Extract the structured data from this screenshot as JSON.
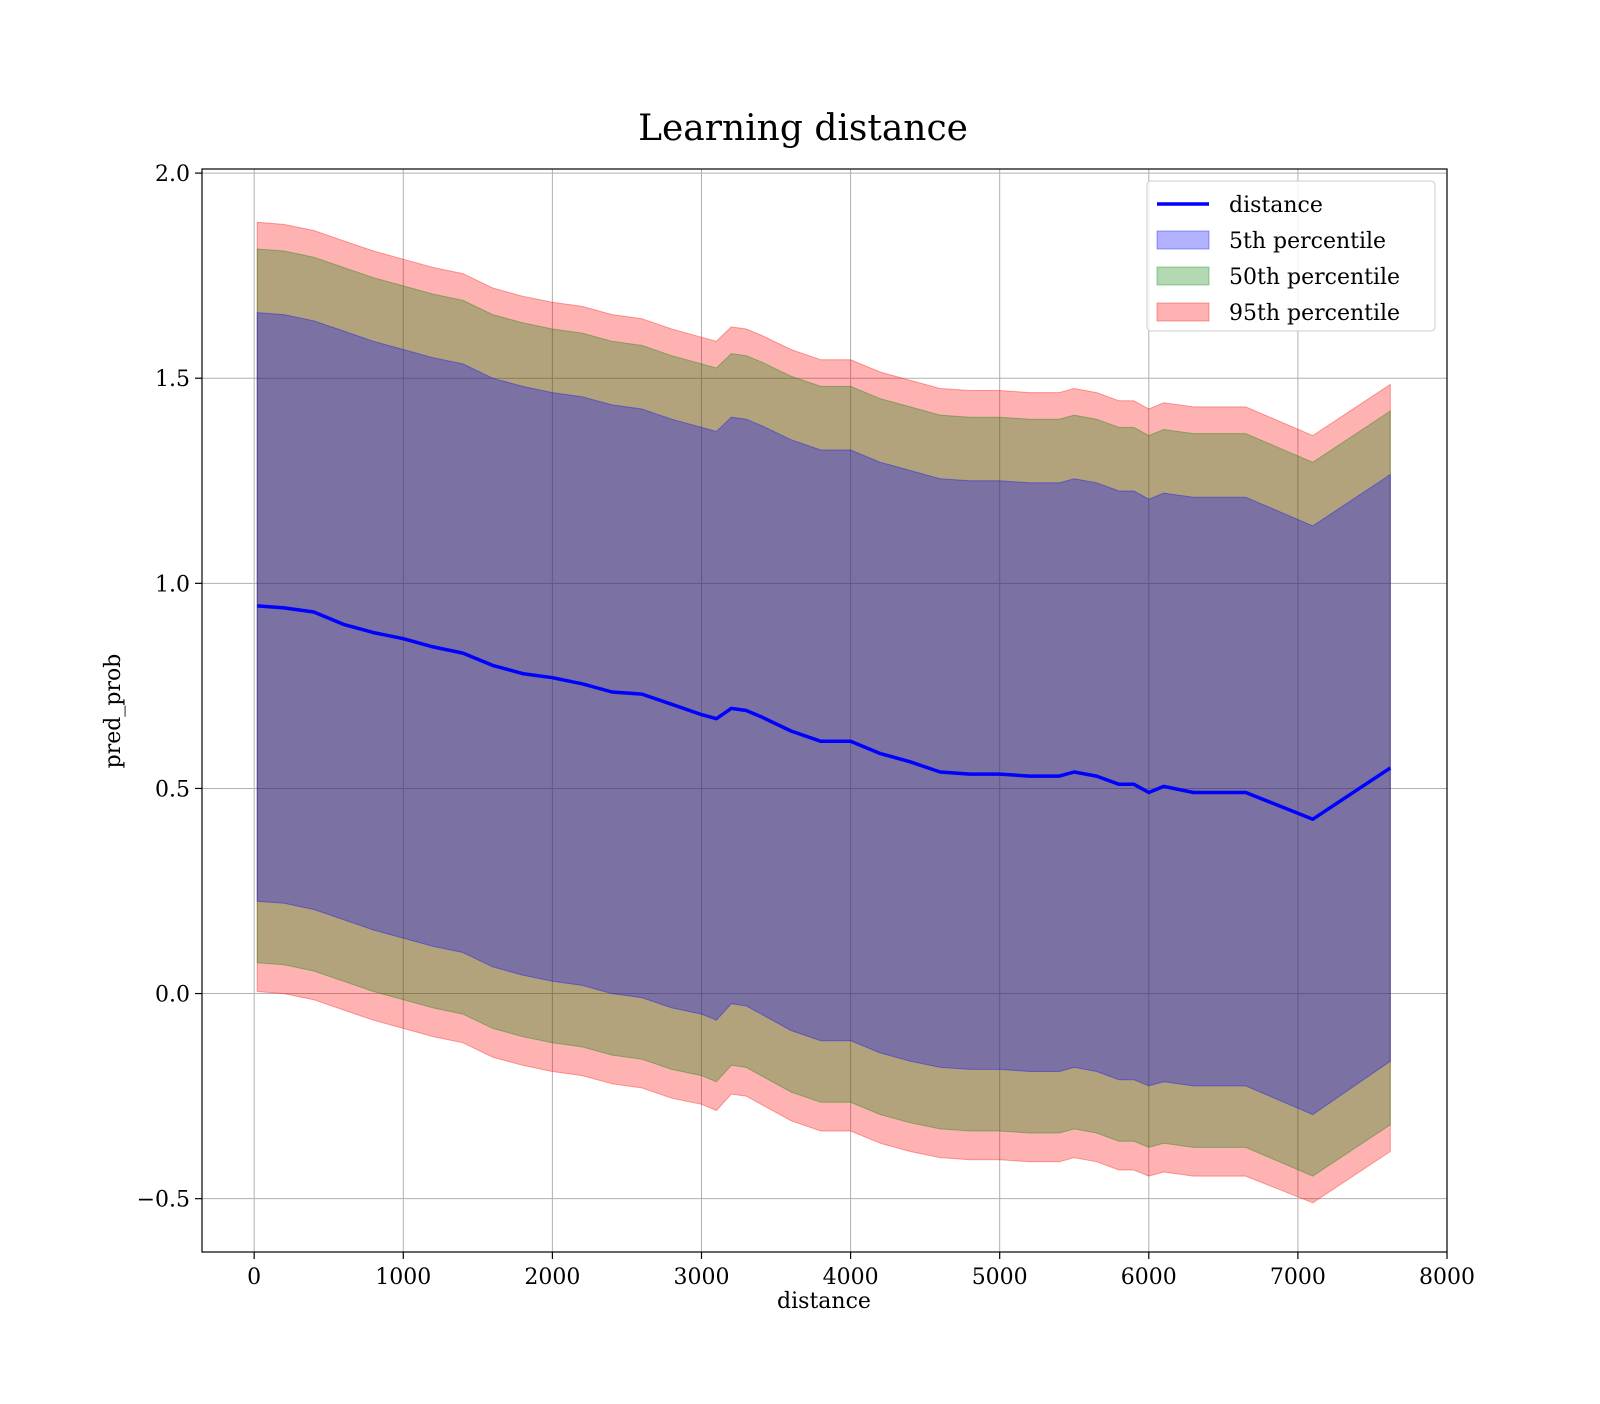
{
  "chart_data": {
    "type": "line",
    "title": "Learning distance",
    "xlabel": "distance",
    "ylabel": "pred_prob",
    "xlim": [
      -350,
      8000
    ],
    "ylim": [
      -0.63,
      2.01
    ],
    "xticks": [
      0,
      1000,
      2000,
      3000,
      4000,
      5000,
      6000,
      7000,
      8000
    ],
    "xtick_labels": [
      "0",
      "1000",
      "2000",
      "3000",
      "4000",
      "5000",
      "6000",
      "7000",
      "8000"
    ],
    "yticks": [
      -0.5,
      0.0,
      0.5,
      1.0,
      1.5,
      2.0
    ],
    "ytick_labels": [
      "−0.5",
      "0.0",
      "0.5",
      "1.0",
      "1.5",
      "2.0"
    ],
    "grid": true,
    "legend_position": "top-right",
    "legend": [
      {
        "label": "distance",
        "kind": "line",
        "color": "#0000ff"
      },
      {
        "label": "5th percentile",
        "kind": "patch",
        "color": "#0000ff"
      },
      {
        "label": "50th percentile",
        "kind": "patch",
        "color": "#008000"
      },
      {
        "label": "95th percentile",
        "kind": "patch",
        "color": "#ff0000"
      }
    ],
    "x": [
      20,
      200,
      400,
      600,
      800,
      1000,
      1200,
      1400,
      1600,
      1800,
      2000,
      2200,
      2400,
      2600,
      2800,
      3000,
      3100,
      3200,
      3300,
      3400,
      3600,
      3800,
      4000,
      4200,
      4400,
      4600,
      4800,
      5000,
      5200,
      5400,
      5500,
      5650,
      5800,
      5900,
      6000,
      6100,
      6300,
      6650,
      7100,
      7620
    ],
    "series": [
      {
        "name": "distance",
        "color": "#0000ff",
        "values": [
          0.945,
          0.94,
          0.93,
          0.9,
          0.88,
          0.865,
          0.845,
          0.83,
          0.8,
          0.78,
          0.77,
          0.755,
          0.735,
          0.73,
          0.705,
          0.68,
          0.67,
          0.695,
          0.69,
          0.675,
          0.64,
          0.615,
          0.615,
          0.585,
          0.565,
          0.54,
          0.535,
          0.535,
          0.53,
          0.53,
          0.54,
          0.53,
          0.51,
          0.51,
          0.49,
          0.505,
          0.49,
          0.49,
          0.425,
          0.55
        ]
      }
    ],
    "bands": [
      {
        "name": "95th percentile",
        "color": "#ff0000",
        "upper": [
          1.88,
          1.875,
          1.86,
          1.835,
          1.81,
          1.79,
          1.77,
          1.755,
          1.72,
          1.7,
          1.685,
          1.675,
          1.655,
          1.645,
          1.62,
          1.6,
          1.59,
          1.625,
          1.62,
          1.605,
          1.57,
          1.545,
          1.545,
          1.515,
          1.495,
          1.475,
          1.47,
          1.47,
          1.465,
          1.465,
          1.475,
          1.465,
          1.445,
          1.445,
          1.425,
          1.44,
          1.43,
          1.43,
          1.36,
          1.485
        ],
        "lower": [
          0.005,
          -0.0,
          -0.015,
          -0.04,
          -0.065,
          -0.085,
          -0.105,
          -0.12,
          -0.155,
          -0.175,
          -0.19,
          -0.2,
          -0.22,
          -0.23,
          -0.255,
          -0.27,
          -0.285,
          -0.245,
          -0.25,
          -0.27,
          -0.31,
          -0.335,
          -0.335,
          -0.365,
          -0.385,
          -0.4,
          -0.405,
          -0.405,
          -0.41,
          -0.41,
          -0.4,
          -0.41,
          -0.43,
          -0.43,
          -0.445,
          -0.435,
          -0.445,
          -0.445,
          -0.51,
          -0.385
        ]
      },
      {
        "name": "50th percentile",
        "color": "#008000",
        "upper": [
          1.815,
          1.81,
          1.795,
          1.77,
          1.745,
          1.725,
          1.705,
          1.69,
          1.655,
          1.635,
          1.62,
          1.61,
          1.59,
          1.58,
          1.555,
          1.535,
          1.525,
          1.56,
          1.555,
          1.54,
          1.505,
          1.48,
          1.48,
          1.45,
          1.43,
          1.41,
          1.405,
          1.405,
          1.4,
          1.4,
          1.41,
          1.4,
          1.38,
          1.38,
          1.36,
          1.375,
          1.365,
          1.365,
          1.295,
          1.42
        ],
        "lower": [
          0.075,
          0.07,
          0.055,
          0.03,
          0.005,
          -0.015,
          -0.035,
          -0.05,
          -0.085,
          -0.105,
          -0.12,
          -0.13,
          -0.15,
          -0.16,
          -0.185,
          -0.2,
          -0.215,
          -0.175,
          -0.18,
          -0.2,
          -0.24,
          -0.265,
          -0.265,
          -0.295,
          -0.315,
          -0.33,
          -0.335,
          -0.335,
          -0.34,
          -0.34,
          -0.33,
          -0.34,
          -0.36,
          -0.36,
          -0.375,
          -0.365,
          -0.375,
          -0.375,
          -0.445,
          -0.32
        ]
      },
      {
        "name": "5th percentile",
        "color": "#0000ff",
        "upper": [
          1.66,
          1.655,
          1.64,
          1.615,
          1.59,
          1.57,
          1.55,
          1.535,
          1.5,
          1.48,
          1.465,
          1.455,
          1.435,
          1.425,
          1.4,
          1.38,
          1.37,
          1.405,
          1.4,
          1.385,
          1.35,
          1.325,
          1.325,
          1.295,
          1.275,
          1.255,
          1.25,
          1.25,
          1.245,
          1.245,
          1.255,
          1.245,
          1.225,
          1.225,
          1.205,
          1.22,
          1.21,
          1.21,
          1.14,
          1.265
        ],
        "lower": [
          0.225,
          0.22,
          0.205,
          0.18,
          0.155,
          0.135,
          0.115,
          0.1,
          0.065,
          0.045,
          0.03,
          0.02,
          0.0,
          -0.01,
          -0.035,
          -0.05,
          -0.065,
          -0.025,
          -0.03,
          -0.05,
          -0.09,
          -0.115,
          -0.115,
          -0.145,
          -0.165,
          -0.18,
          -0.185,
          -0.185,
          -0.19,
          -0.19,
          -0.18,
          -0.19,
          -0.21,
          -0.21,
          -0.225,
          -0.215,
          -0.225,
          -0.225,
          -0.295,
          -0.165
        ]
      }
    ]
  }
}
